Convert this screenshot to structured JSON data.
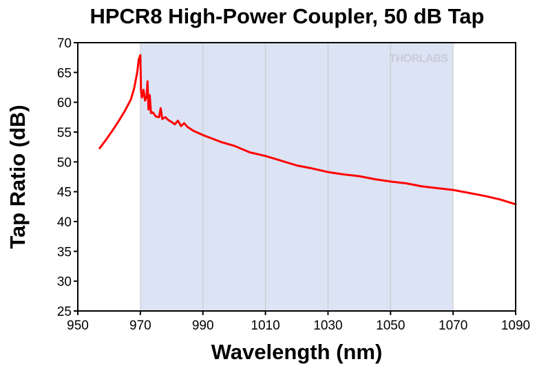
{
  "chart_data": {
    "type": "line",
    "title": "HPCR8 High-Power Coupler, 50 dB Tap",
    "xlabel": "Wavelength (nm)",
    "ylabel": "Tap Ratio (dB)",
    "xlim": [
      950,
      1090
    ],
    "ylim": [
      25,
      70
    ],
    "xticks": [
      950,
      970,
      990,
      1010,
      1030,
      1050,
      1070,
      1090
    ],
    "yticks": [
      25,
      30,
      35,
      40,
      45,
      50,
      55,
      60,
      65,
      70
    ],
    "shaded_band": {
      "x_range": [
        970,
        1070
      ],
      "color": "#dbe3f4"
    },
    "watermark": "THORLABS",
    "grid": true,
    "series": [
      {
        "color": "#ff0000",
        "x": [
          957,
          959,
          961,
          963,
          965,
          967,
          968,
          969,
          969.5,
          970,
          970.2,
          970.5,
          971,
          971.5,
          972,
          972.3,
          972.6,
          973,
          973.4,
          974,
          975,
          976,
          976.5,
          977,
          978,
          979,
          980,
          981,
          982,
          983,
          984,
          985,
          987,
          990,
          993,
          996,
          1000,
          1005,
          1010,
          1015,
          1020,
          1025,
          1030,
          1035,
          1040,
          1045,
          1050,
          1055,
          1060,
          1065,
          1070,
          1075,
          1080,
          1085,
          1090
        ],
        "y": [
          52.3,
          53.7,
          55.2,
          56.8,
          58.5,
          60.5,
          62.3,
          65.0,
          67.2,
          67.9,
          62.0,
          60.8,
          62.1,
          60.3,
          61.0,
          63.5,
          58.8,
          61.2,
          58.2,
          58.3,
          57.6,
          57.5,
          59.0,
          57.2,
          57.5,
          57.0,
          56.7,
          56.3,
          56.9,
          56.0,
          56.5,
          55.9,
          55.2,
          54.5,
          53.9,
          53.3,
          52.7,
          51.6,
          51.0,
          50.2,
          49.4,
          48.9,
          48.3,
          47.9,
          47.6,
          47.1,
          46.7,
          46.4,
          45.9,
          45.6,
          45.3,
          44.8,
          44.3,
          43.7,
          42.9
        ]
      }
    ]
  }
}
